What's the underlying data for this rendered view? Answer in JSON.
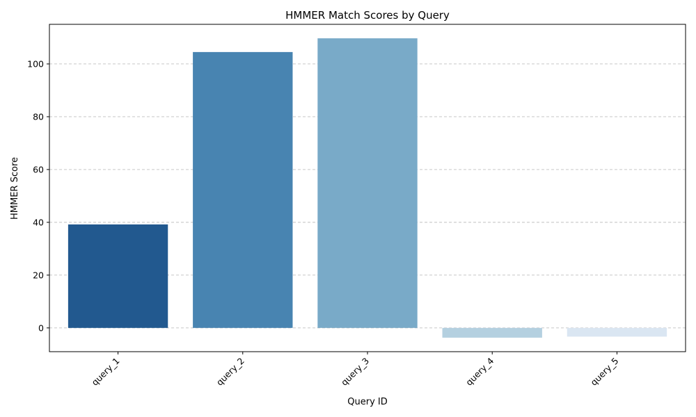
{
  "chart_data": {
    "type": "bar",
    "title": "HMMER Match Scores by Query",
    "xlabel": "Query ID",
    "ylabel": "HMMER Score",
    "categories": [
      "query_1",
      "query_2",
      "query_3",
      "query_4",
      "query_5"
    ],
    "values": [
      39.2,
      104.5,
      109.7,
      -3.7,
      -3.3
    ],
    "colors": [
      "#22598f",
      "#4884b1",
      "#79aac8",
      "#b4d0e0",
      "#dae6f2"
    ],
    "ylim": [
      -9,
      115
    ],
    "yticks": [
      0,
      20,
      40,
      60,
      80,
      100
    ],
    "ytick_labels": [
      "0",
      "20",
      "40",
      "60",
      "80",
      "100"
    ],
    "grid": {
      "axis": "y",
      "style": "dashed"
    },
    "xtick_rotation": 45
  }
}
